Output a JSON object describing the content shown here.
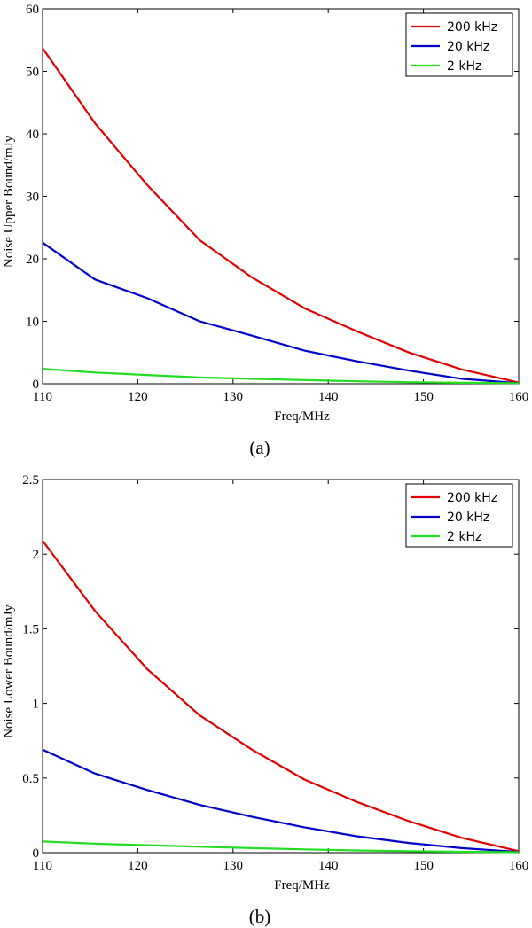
{
  "chart_data": [
    {
      "type": "line",
      "caption": "(a)",
      "xlabel": "Freq/MHz",
      "ylabel": "Noise Upper Bound/mJy",
      "xlim": [
        110,
        160
      ],
      "ylim": [
        0,
        60
      ],
      "xticks": [
        "110",
        "120",
        "130",
        "140",
        "150",
        "160"
      ],
      "yticks": [
        "0",
        "10",
        "20",
        "30",
        "40",
        "50",
        "60"
      ],
      "legend_position": "top-right",
      "x": [
        110,
        115.5,
        121,
        126.5,
        132,
        137.5,
        143,
        148.5,
        154,
        160
      ],
      "series": [
        {
          "name": "200 kHz",
          "color": "#e00000",
          "values": [
            53.7,
            41.7,
            31.8,
            23.0,
            17.0,
            12.1,
            8.4,
            5.0,
            2.3,
            0.2
          ]
        },
        {
          "name": "20 kHz",
          "color": "#0000c8",
          "values": [
            22.6,
            16.7,
            13.7,
            10.0,
            7.7,
            5.3,
            3.6,
            2.1,
            0.8,
            0.1
          ]
        },
        {
          "name": "2 kHz",
          "color": "#22dd22",
          "values": [
            2.4,
            1.8,
            1.4,
            1.0,
            0.8,
            0.6,
            0.4,
            0.25,
            0.15,
            0.1
          ]
        }
      ]
    },
    {
      "type": "line",
      "caption": "(b)",
      "xlabel": "Freq/MHz",
      "ylabel": "Noise Lower Bound/mJy",
      "xlim": [
        110,
        160
      ],
      "ylim": [
        0,
        2.5
      ],
      "xticks": [
        "110",
        "120",
        "130",
        "140",
        "150",
        "160"
      ],
      "yticks": [
        "0",
        "0.5",
        "1",
        "1.5",
        "2",
        "2.5"
      ],
      "legend_position": "top-right",
      "x": [
        110,
        115.5,
        121,
        126.5,
        132,
        137.5,
        143,
        148.5,
        154,
        160
      ],
      "series": [
        {
          "name": "200 kHz",
          "color": "#e00000",
          "values": [
            2.09,
            1.62,
            1.23,
            0.92,
            0.69,
            0.49,
            0.34,
            0.21,
            0.1,
            0.01
          ]
        },
        {
          "name": "20 kHz",
          "color": "#0000c8",
          "values": [
            0.69,
            0.53,
            0.42,
            0.32,
            0.24,
            0.17,
            0.11,
            0.065,
            0.03,
            0.005
          ]
        },
        {
          "name": "2 kHz",
          "color": "#22dd22",
          "values": [
            0.075,
            0.06,
            0.05,
            0.04,
            0.03,
            0.022,
            0.015,
            0.01,
            0.006,
            0.003
          ]
        }
      ]
    }
  ]
}
